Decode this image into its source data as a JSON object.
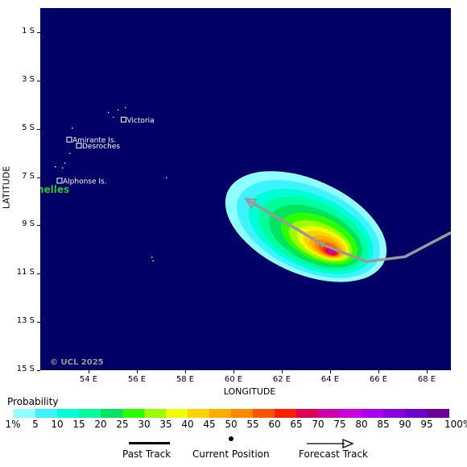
{
  "map": {
    "ocean_color": "#000066",
    "islands": [
      {
        "name": "Victoria",
        "lon": 55.45,
        "lat": -4.62
      },
      {
        "name": "Amirante Is.",
        "lon": 53.2,
        "lat": -5.45
      },
      {
        "name": "Desroches",
        "lon": 53.6,
        "lat": -5.7
      },
      {
        "name": "Alphonse Is.",
        "lon": 52.8,
        "lat": -7.15
      }
    ],
    "country_label": "nelles",
    "copyright": "© UCL 2025",
    "lon_range": [
      52,
      69
    ],
    "lat_range": [
      -15,
      0
    ]
  },
  "axes": {
    "y_title": "LATITUDE",
    "x_title": "LONGITUDE",
    "y_ticks": [
      "1 S",
      "3 S",
      "5 S",
      "7 S",
      "9 S",
      "11 S",
      "13 S",
      "15 S"
    ],
    "y_values": [
      -1,
      -3,
      -5,
      -7,
      -9,
      -11,
      -13,
      -15
    ],
    "x_ticks": [
      "54 E",
      "56 E",
      "58 E",
      "60 E",
      "62 E",
      "64 E",
      "66 E",
      "68 E"
    ],
    "x_values": [
      54,
      56,
      58,
      60,
      62,
      64,
      66,
      68
    ]
  },
  "tracks": {
    "current_position": {
      "lon": 63.7,
      "lat": -9.8
    },
    "forecast": [
      {
        "lon": 60.5,
        "lat": -7.9
      },
      {
        "lon": 63.7,
        "lat": -9.8
      },
      {
        "lon": 65.5,
        "lat": -10.5
      },
      {
        "lon": 67.1,
        "lat": -10.3
      },
      {
        "lon": 69.0,
        "lat": -9.3
      }
    ]
  },
  "probability": {
    "title": "Probability",
    "labels": [
      "1%",
      "5",
      "10",
      "15",
      "20",
      "25",
      "30",
      "35",
      "40",
      "45",
      "50",
      "55",
      "60",
      "65",
      "70",
      "75",
      "80",
      "85",
      "90",
      "95",
      "100%"
    ],
    "colors": [
      "#8fffff",
      "#3ff2ff",
      "#00ffd7",
      "#00ff9a",
      "#00e45f",
      "#2cff00",
      "#9bff00",
      "#eeff00",
      "#ffd200",
      "#ffae00",
      "#ff8800",
      "#ff5500",
      "#ff1e00",
      "#dd0055",
      "#cc00aa",
      "#cc00dd",
      "#aa00ee",
      "#8800dd",
      "#6a00cc",
      "#6a0099"
    ]
  },
  "legend": {
    "past_track": "Past Track",
    "current_position": "Current Position",
    "forecast_track": "Forecast Track"
  }
}
